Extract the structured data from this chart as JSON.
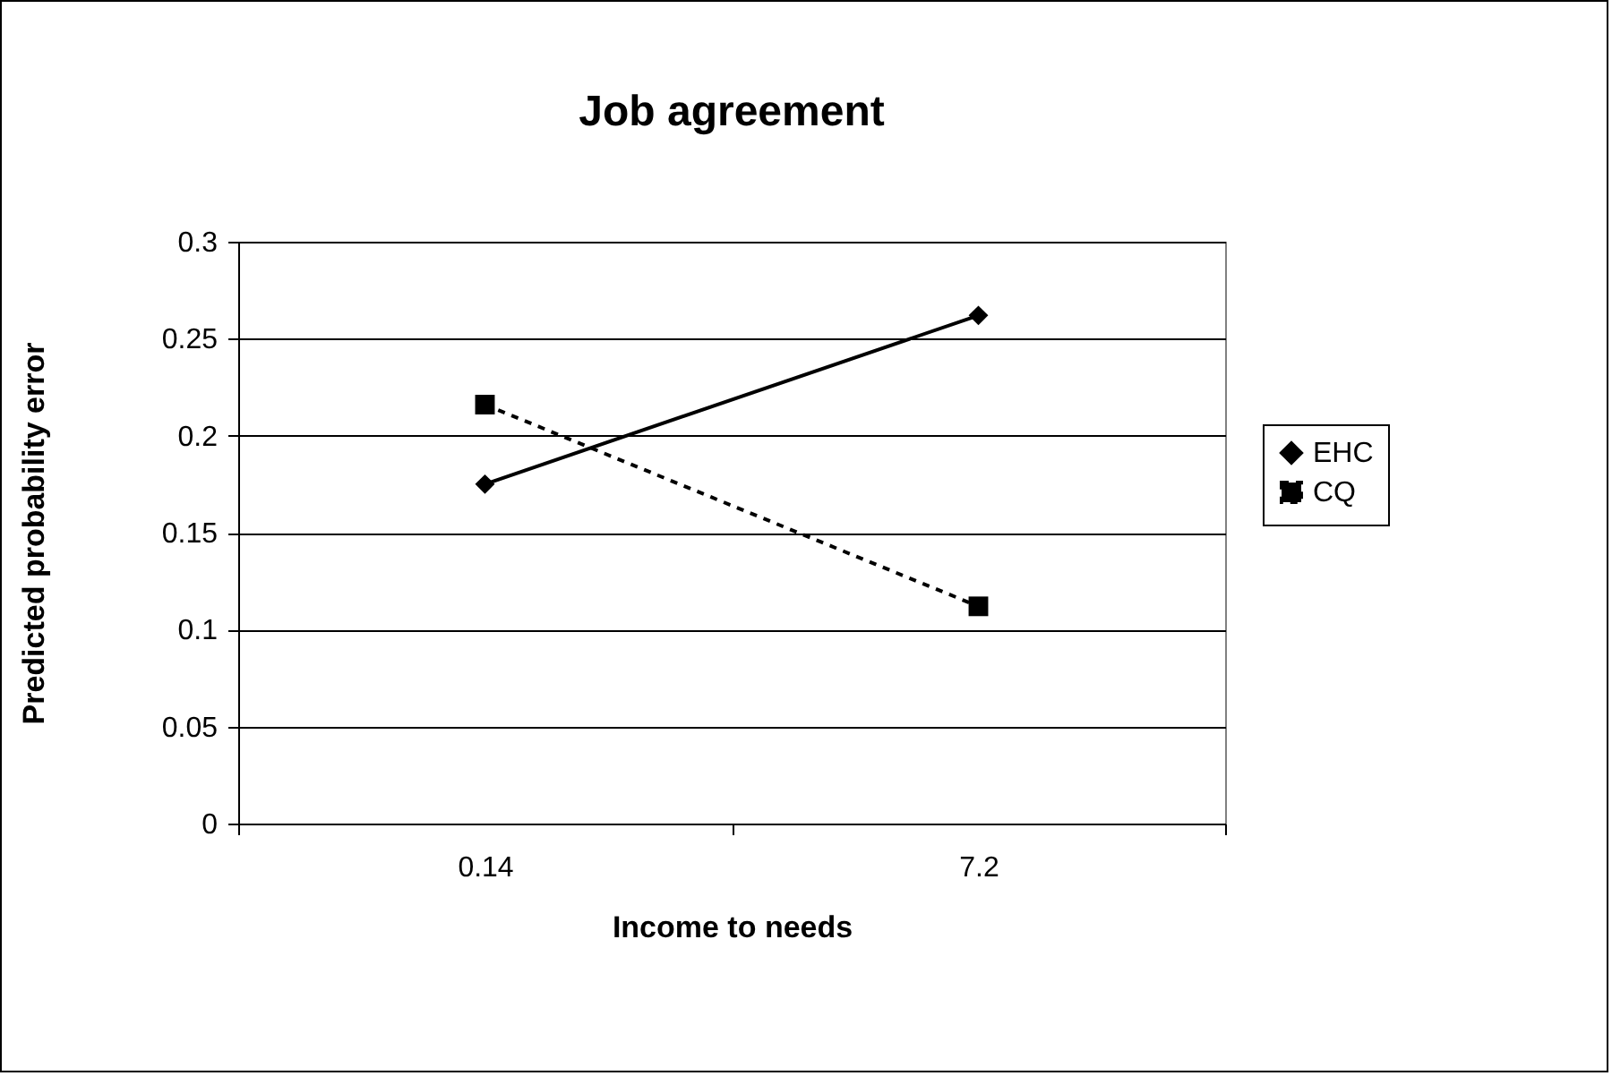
{
  "chart_data": {
    "type": "line",
    "title": "Job agreement",
    "xlabel": "Income to needs",
    "ylabel": "Predicted probability error",
    "categories": [
      "0.14",
      "7.2"
    ],
    "series": [
      {
        "name": "EHC",
        "color": "#000000",
        "values": [
          0.175,
          0.262
        ],
        "marker": "diamond",
        "line_style": "solid"
      },
      {
        "name": "CQ",
        "color": "#000000",
        "values": [
          0.216,
          0.112
        ],
        "marker": "square",
        "line_style": "dashed"
      }
    ],
    "ylim": [
      0,
      0.3
    ],
    "yticks": [
      0,
      0.05,
      0.1,
      0.15,
      0.2,
      0.25,
      0.3
    ],
    "grid": "y",
    "legend": "right"
  }
}
